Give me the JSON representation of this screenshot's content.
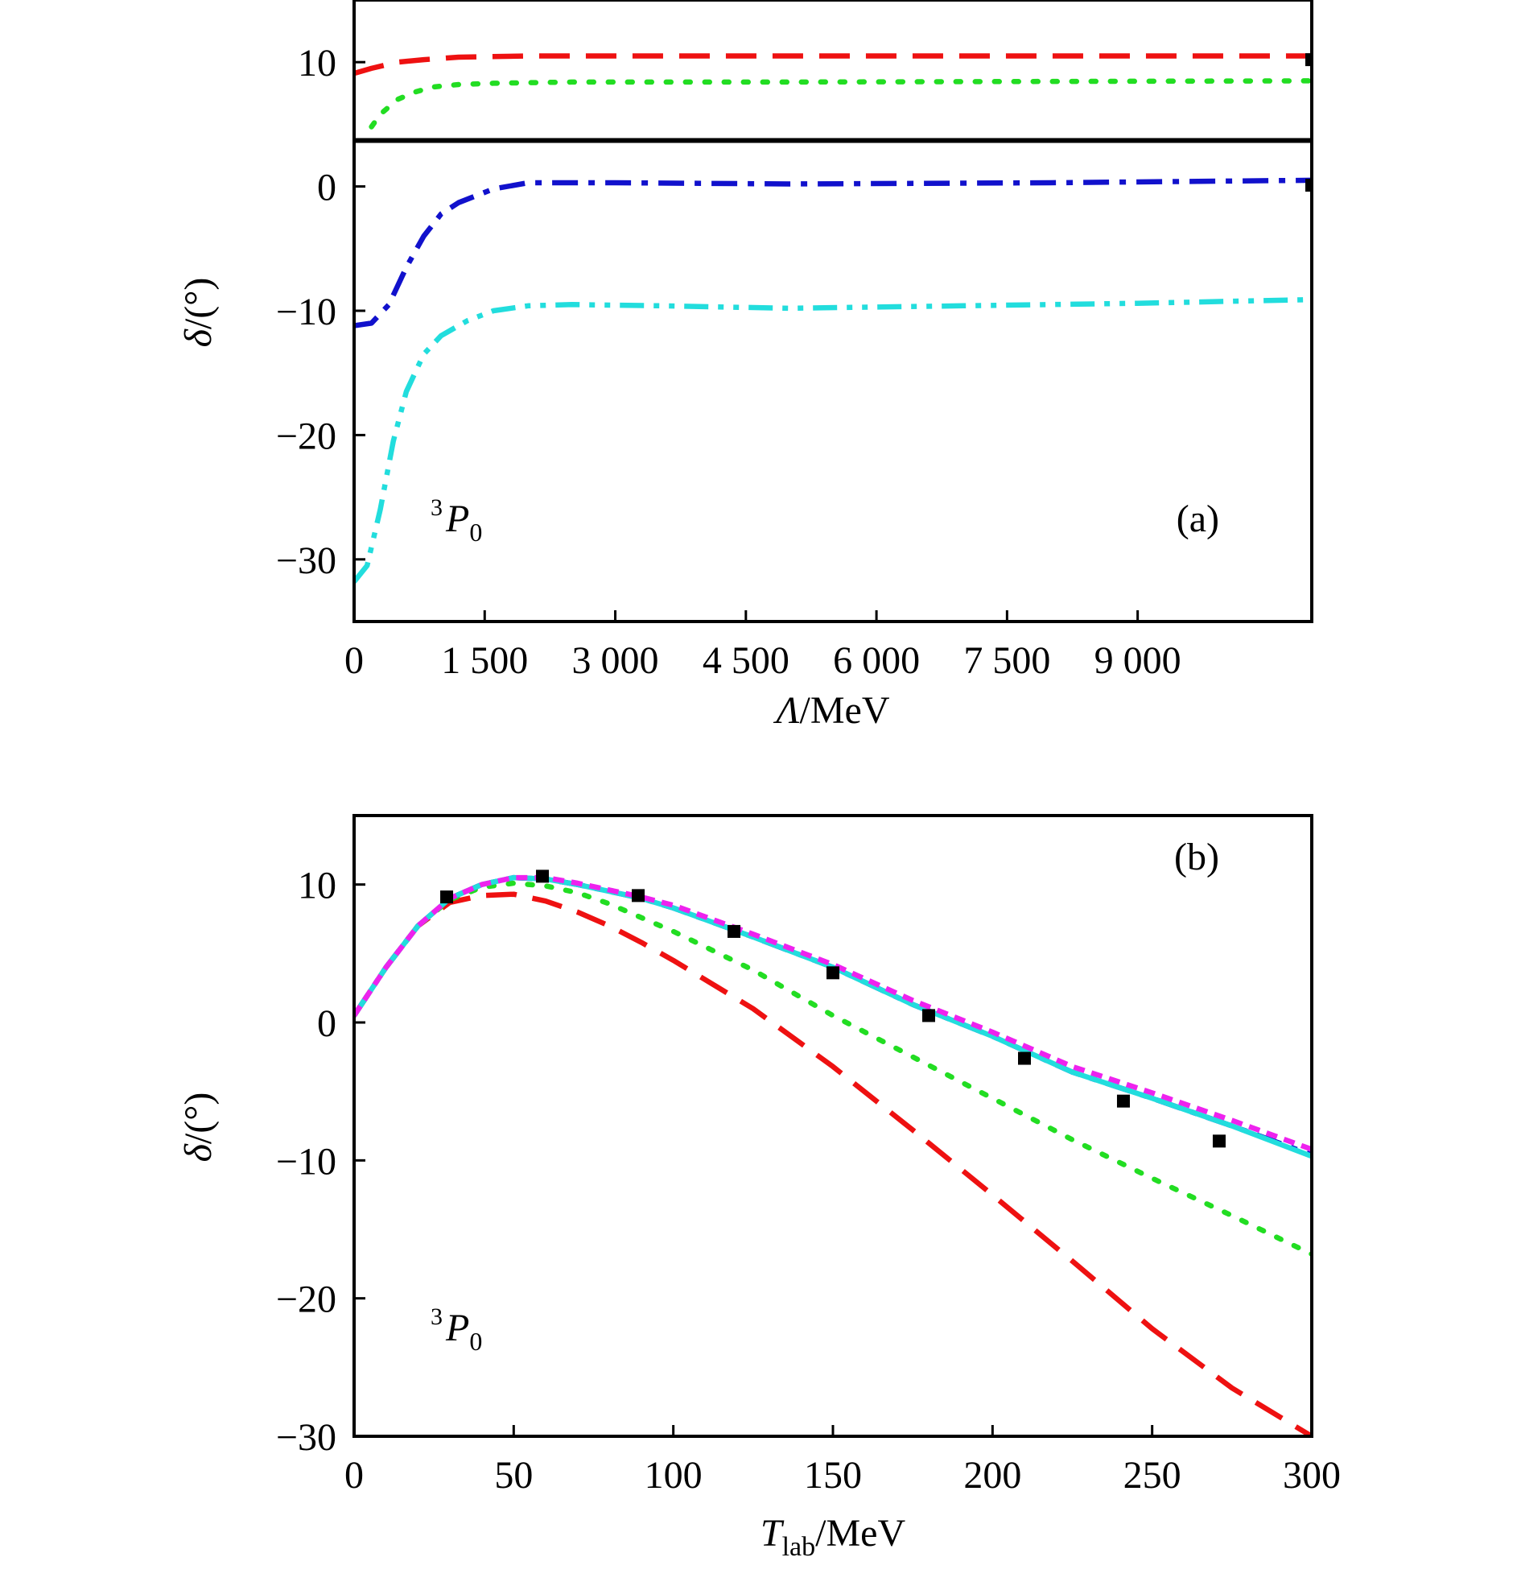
{
  "chart_data": [
    {
      "type": "line",
      "panel_label": "(a)",
      "annotation": {
        "superscript": "3",
        "letter": "P",
        "subscript": "0"
      },
      "xlabel": {
        "symbol": "Λ",
        "unit": "/MeV"
      },
      "ylabel": "δ/(°)",
      "xlim": [
        0,
        11000
      ],
      "ylim": [
        -35,
        15
      ],
      "xticks": [
        0,
        1500,
        3000,
        4500,
        6000,
        7500,
        9000
      ],
      "xtick_labels": [
        "0",
        "1 500",
        "3 000",
        "4 500",
        "6 000",
        "7 500",
        "9 000"
      ],
      "yticks": [
        -30,
        -20,
        -10,
        0,
        10
      ],
      "ytick_labels": [
        "−30",
        "−20",
        "−10",
        "0",
        "10"
      ],
      "grid": false,
      "legend": "none",
      "series": [
        {
          "style": "solid",
          "color": "#000000",
          "x": [
            0,
            11000
          ],
          "y": [
            3.7,
            3.7
          ]
        },
        {
          "style": "dashed",
          "color": "#ee1111",
          "x": [
            0,
            200,
            500,
            800,
            1200,
            2000,
            4000,
            7000,
            11000
          ],
          "y": [
            9.1,
            9.5,
            10.0,
            10.2,
            10.4,
            10.5,
            10.5,
            10.5,
            10.5
          ]
        },
        {
          "style": "dotted",
          "color": "#22dd22",
          "x": [
            200,
            300,
            500,
            700,
            900,
            1200,
            1600,
            2500,
            5000,
            11000
          ],
          "y": [
            4.8,
            5.8,
            7.0,
            7.6,
            8.0,
            8.2,
            8.3,
            8.4,
            8.4,
            8.5
          ]
        },
        {
          "style": "dashdot",
          "color": "#1111cc",
          "x": [
            0,
            200,
            400,
            600,
            800,
            1000,
            1200,
            1600,
            2000,
            3000,
            5000,
            8000,
            11000
          ],
          "y": [
            -11.2,
            -11.0,
            -9.5,
            -6.5,
            -4.0,
            -2.2,
            -1.3,
            -0.2,
            0.3,
            0.3,
            0.2,
            0.3,
            0.5
          ]
        },
        {
          "style": "dashdotdot",
          "color": "#22dddd",
          "x": [
            0,
            150,
            300,
            450,
            600,
            800,
            1000,
            1300,
            1600,
            2000,
            2500,
            3500,
            5000,
            7000,
            9000,
            11000
          ],
          "y": [
            -31.8,
            -30.5,
            -26.0,
            -20.5,
            -16.5,
            -13.5,
            -12.0,
            -10.8,
            -10.0,
            -9.6,
            -9.5,
            -9.6,
            -9.8,
            -9.6,
            -9.4,
            -9.1
          ]
        }
      ],
      "points": {
        "marker": "square",
        "color": "#000000",
        "x": [
          11000,
          11000
        ],
        "y": [
          10.2,
          0.1
        ]
      }
    },
    {
      "type": "line",
      "panel_label": "(b)",
      "annotation": {
        "superscript": "3",
        "letter": "P",
        "subscript": "0"
      },
      "xlabel": {
        "symbol": "T",
        "subscript": "lab",
        "unit": "/MeV"
      },
      "ylabel": "δ/(°)",
      "xlim": [
        0,
        300
      ],
      "ylim": [
        -30,
        15
      ],
      "xticks": [
        0,
        50,
        100,
        150,
        200,
        250,
        300
      ],
      "xtick_labels": [
        "0",
        "50",
        "100",
        "150",
        "200",
        "250",
        "300"
      ],
      "yticks": [
        -30,
        -20,
        -10,
        0,
        10
      ],
      "ytick_labels": [
        "−30",
        "−20",
        "−10",
        "0",
        "10"
      ],
      "grid": false,
      "legend": "none",
      "series": [
        {
          "style": "dashed",
          "color": "#ee1111",
          "x": [
            0,
            10,
            20,
            30,
            40,
            50,
            60,
            70,
            80,
            90,
            100,
            125,
            150,
            175,
            200,
            225,
            250,
            275,
            300
          ],
          "y": [
            0.5,
            4.0,
            7.0,
            8.7,
            9.2,
            9.3,
            8.8,
            8.0,
            7.0,
            5.8,
            4.5,
            1.0,
            -3.2,
            -7.8,
            -12.5,
            -17.3,
            -22.2,
            -26.5,
            -30.0
          ]
        },
        {
          "style": "dotted",
          "color": "#22dd22",
          "x": [
            0,
            10,
            20,
            30,
            40,
            50,
            60,
            70,
            80,
            100,
            125,
            150,
            175,
            200,
            225,
            250,
            275,
            300
          ],
          "y": [
            0.5,
            4.0,
            7.0,
            8.9,
            9.8,
            10.1,
            9.9,
            9.4,
            8.6,
            6.6,
            3.8,
            0.5,
            -2.5,
            -5.5,
            -8.5,
            -11.3,
            -14.0,
            -16.8
          ]
        },
        {
          "style": "dashdot",
          "color": "#1111cc",
          "x": [
            0,
            10,
            20,
            30,
            40,
            50,
            60,
            70,
            80,
            90,
            100,
            125,
            150,
            175,
            200,
            225,
            250,
            275,
            300
          ],
          "y": [
            0.5,
            4.0,
            7.0,
            9.0,
            10.0,
            10.5,
            10.4,
            10.0,
            9.5,
            9.0,
            8.3,
            6.2,
            4.0,
            1.3,
            -1.0,
            -3.6,
            -5.5,
            -7.5,
            -9.6
          ]
        },
        {
          "style": "solid",
          "color": "#22dddd",
          "x": [
            0,
            10,
            20,
            30,
            40,
            50,
            60,
            70,
            80,
            90,
            100,
            125,
            150,
            175,
            200,
            225,
            250,
            275,
            300
          ],
          "y": [
            0.5,
            4.0,
            7.0,
            9.0,
            10.0,
            10.5,
            10.4,
            10.0,
            9.5,
            9.0,
            8.3,
            6.2,
            4.0,
            1.3,
            -1.0,
            -3.6,
            -5.5,
            -7.5,
            -9.7
          ]
        },
        {
          "style": "shortdash",
          "color": "#ee22ee",
          "x": [
            0,
            10,
            20,
            30,
            40,
            50,
            60,
            70,
            80,
            90,
            100,
            125,
            150,
            175,
            200,
            225,
            250,
            275,
            300
          ],
          "y": [
            0.5,
            4.0,
            7.0,
            9.0,
            10.0,
            10.5,
            10.5,
            10.1,
            9.6,
            9.1,
            8.5,
            6.4,
            4.2,
            1.6,
            -0.7,
            -3.2,
            -5.1,
            -7.1,
            -9.2
          ]
        }
      ],
      "points": {
        "marker": "square",
        "color": "#000000",
        "x": [
          29,
          59,
          89,
          119,
          150,
          180,
          210,
          241,
          271
        ],
        "y": [
          9.1,
          10.6,
          9.2,
          6.6,
          3.6,
          0.5,
          -2.6,
          -5.7,
          -8.6
        ]
      }
    }
  ]
}
